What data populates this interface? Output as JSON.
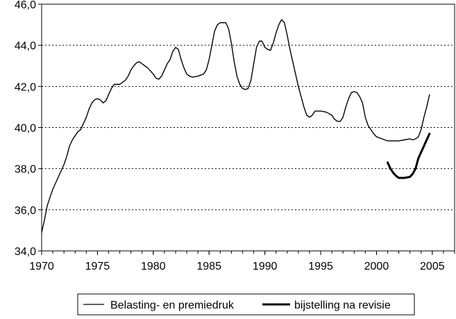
{
  "chart_data": {
    "type": "line",
    "title": "",
    "xlabel": "",
    "ylabel": "",
    "xlim": [
      1970,
      2007
    ],
    "ylim": [
      34.0,
      46.0
    ],
    "x_ticks": [
      "1970",
      "1975",
      "1980",
      "1985",
      "1990",
      "1995",
      "2000",
      "2005"
    ],
    "y_ticks": [
      "34,0",
      "36,0",
      "38,0",
      "40,0",
      "42,0",
      "44,0",
      "46,0"
    ],
    "grid": "horizontal-dotted",
    "legend_position": "bottom",
    "series": [
      {
        "name": "Belasting- en premiedruk",
        "color": "#000000",
        "style": "thin",
        "points": [
          [
            1970.0,
            34.9
          ],
          [
            1970.25,
            35.5
          ],
          [
            1970.5,
            36.2
          ],
          [
            1970.75,
            36.6
          ],
          [
            1971.0,
            37.0
          ],
          [
            1971.5,
            37.6
          ],
          [
            1972.0,
            38.2
          ],
          [
            1972.25,
            38.6
          ],
          [
            1972.5,
            39.1
          ],
          [
            1972.75,
            39.4
          ],
          [
            1973.0,
            39.6
          ],
          [
            1973.25,
            39.8
          ],
          [
            1973.5,
            39.9
          ],
          [
            1973.75,
            40.2
          ],
          [
            1974.0,
            40.5
          ],
          [
            1974.25,
            40.9
          ],
          [
            1974.5,
            41.2
          ],
          [
            1974.75,
            41.35
          ],
          [
            1975.0,
            41.4
          ],
          [
            1975.25,
            41.35
          ],
          [
            1975.5,
            41.2
          ],
          [
            1975.75,
            41.3
          ],
          [
            1976.0,
            41.6
          ],
          [
            1976.25,
            41.9
          ],
          [
            1976.5,
            42.1
          ],
          [
            1977.0,
            42.1
          ],
          [
            1977.5,
            42.3
          ],
          [
            1977.75,
            42.5
          ],
          [
            1978.0,
            42.8
          ],
          [
            1978.25,
            43.0
          ],
          [
            1978.5,
            43.15
          ],
          [
            1978.75,
            43.2
          ],
          [
            1979.0,
            43.1
          ],
          [
            1979.25,
            43.0
          ],
          [
            1979.5,
            42.9
          ],
          [
            1980.0,
            42.6
          ],
          [
            1980.25,
            42.4
          ],
          [
            1980.5,
            42.35
          ],
          [
            1980.75,
            42.5
          ],
          [
            1981.0,
            42.8
          ],
          [
            1981.25,
            43.1
          ],
          [
            1981.5,
            43.3
          ],
          [
            1981.75,
            43.7
          ],
          [
            1982.0,
            43.9
          ],
          [
            1982.25,
            43.8
          ],
          [
            1982.5,
            43.3
          ],
          [
            1982.75,
            42.9
          ],
          [
            1983.0,
            42.6
          ],
          [
            1983.25,
            42.5
          ],
          [
            1983.5,
            42.45
          ],
          [
            1984.0,
            42.5
          ],
          [
            1984.5,
            42.6
          ],
          [
            1984.75,
            42.8
          ],
          [
            1985.0,
            43.3
          ],
          [
            1985.25,
            44.0
          ],
          [
            1985.5,
            44.7
          ],
          [
            1985.75,
            45.0
          ],
          [
            1986.0,
            45.1
          ],
          [
            1986.5,
            45.1
          ],
          [
            1986.75,
            44.8
          ],
          [
            1987.0,
            44.1
          ],
          [
            1987.25,
            43.2
          ],
          [
            1987.5,
            42.5
          ],
          [
            1987.75,
            42.1
          ],
          [
            1988.0,
            41.9
          ],
          [
            1988.25,
            41.85
          ],
          [
            1988.5,
            41.9
          ],
          [
            1988.75,
            42.3
          ],
          [
            1989.0,
            43.1
          ],
          [
            1989.25,
            43.9
          ],
          [
            1989.5,
            44.2
          ],
          [
            1989.75,
            44.2
          ],
          [
            1990.0,
            43.9
          ],
          [
            1990.25,
            43.8
          ],
          [
            1990.5,
            43.75
          ],
          [
            1990.75,
            44.1
          ],
          [
            1991.0,
            44.6
          ],
          [
            1991.25,
            45.0
          ],
          [
            1991.5,
            45.25
          ],
          [
            1991.75,
            45.1
          ],
          [
            1992.0,
            44.5
          ],
          [
            1992.25,
            43.8
          ],
          [
            1992.5,
            43.2
          ],
          [
            1992.75,
            42.6
          ],
          [
            1993.0,
            42.0
          ],
          [
            1993.25,
            41.5
          ],
          [
            1993.5,
            41.0
          ],
          [
            1993.75,
            40.6
          ],
          [
            1994.0,
            40.5
          ],
          [
            1994.25,
            40.6
          ],
          [
            1994.5,
            40.8
          ],
          [
            1995.0,
            40.8
          ],
          [
            1995.5,
            40.75
          ],
          [
            1996.0,
            40.6
          ],
          [
            1996.25,
            40.4
          ],
          [
            1996.5,
            40.3
          ],
          [
            1996.75,
            40.3
          ],
          [
            1997.0,
            40.5
          ],
          [
            1997.25,
            41.0
          ],
          [
            1997.5,
            41.4
          ],
          [
            1997.75,
            41.7
          ],
          [
            1998.0,
            41.75
          ],
          [
            1998.25,
            41.7
          ],
          [
            1998.5,
            41.5
          ],
          [
            1998.75,
            41.2
          ],
          [
            1999.0,
            40.5
          ],
          [
            1999.25,
            40.1
          ],
          [
            1999.5,
            39.9
          ],
          [
            1999.75,
            39.7
          ],
          [
            2000.0,
            39.55
          ],
          [
            2000.5,
            39.45
          ],
          [
            2001.0,
            39.35
          ],
          [
            2001.5,
            39.35
          ],
          [
            2002.0,
            39.35
          ],
          [
            2002.5,
            39.4
          ],
          [
            2003.0,
            39.45
          ],
          [
            2003.25,
            39.4
          ],
          [
            2003.5,
            39.45
          ],
          [
            2003.75,
            39.55
          ],
          [
            2004.0,
            39.9
          ],
          [
            2004.25,
            40.5
          ],
          [
            2004.5,
            41.0
          ],
          [
            2004.75,
            41.6
          ]
        ]
      },
      {
        "name": "bijstelling na revisie",
        "color": "#000000",
        "style": "thick",
        "points": [
          [
            2001.0,
            38.3
          ],
          [
            2001.25,
            38.0
          ],
          [
            2001.5,
            37.8
          ],
          [
            2001.75,
            37.65
          ],
          [
            2002.0,
            37.55
          ],
          [
            2002.5,
            37.55
          ],
          [
            2003.0,
            37.6
          ],
          [
            2003.25,
            37.75
          ],
          [
            2003.5,
            38.0
          ],
          [
            2003.75,
            38.5
          ],
          [
            2004.0,
            38.8
          ],
          [
            2004.25,
            39.1
          ],
          [
            2004.5,
            39.4
          ],
          [
            2004.75,
            39.7
          ]
        ]
      }
    ]
  }
}
